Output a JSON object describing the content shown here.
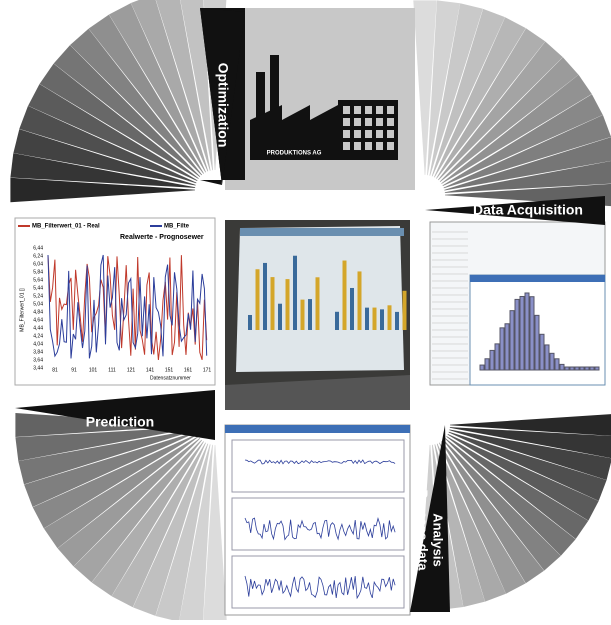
{
  "factory": {
    "label": "PRODUKTIONS AG"
  },
  "arrows": {
    "optimization": "Optimization",
    "data_acquisition": "Data Acquisition",
    "prediction": "Prediction",
    "process_analysis": [
      "Process data",
      "Analysis"
    ]
  },
  "prediction_chart": {
    "legend": [
      "MB_Filterwert_01 - Real",
      "MB_Filte"
    ],
    "title": "Realwerte - Prognosewer",
    "yticks": [
      "6,44",
      "6,24",
      "6,04",
      "5,84",
      "5,64",
      "5,44",
      "5,24",
      "5,04",
      "4,84",
      "4,64",
      "4,44",
      "4,24",
      "4,04",
      "3,84",
      "3,64",
      "3,44"
    ],
    "xticks": [
      "81",
      "91",
      "101",
      "111",
      "121",
      "141",
      "151",
      "161",
      "171"
    ],
    "ylabel": "MB_Filterwert_01 []",
    "xlabel": "Datensatznummer"
  }
}
